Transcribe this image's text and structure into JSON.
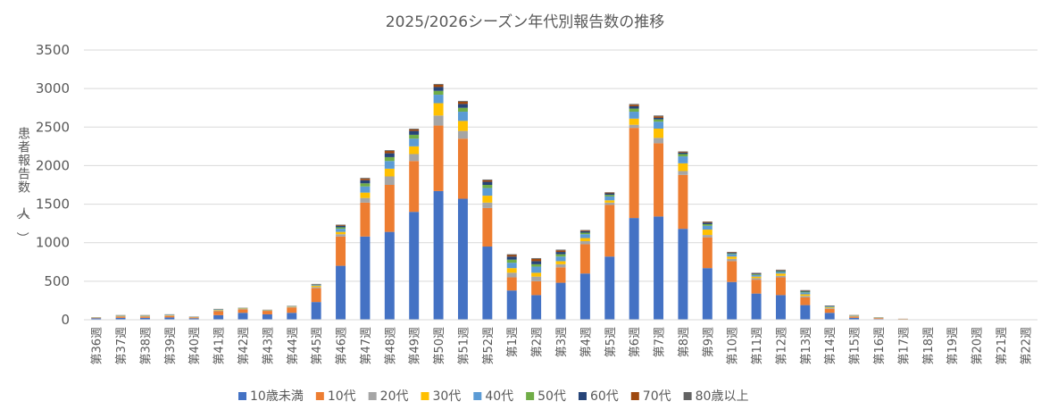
{
  "chart_data": {
    "type": "bar",
    "stacked": true,
    "title": "2025/2026シーズン年代別報告数の推移",
    "xlabel": "",
    "ylabel": "患者報告数（人）",
    "ylim": [
      0,
      3500
    ],
    "yticks": [
      "0",
      "500",
      "1000",
      "1500",
      "2000",
      "2500",
      "3000",
      "3500"
    ],
    "grid": true,
    "legend_position": "bottom",
    "categories": [
      "第36週",
      "第37週",
      "第38週",
      "第39週",
      "第40週",
      "第41週",
      "第42週",
      "第43週",
      "第44週",
      "第45週",
      "第46週",
      "第47週",
      "第48週",
      "第49週",
      "第50週",
      "第51週",
      "第52週",
      "第1週",
      "第2週",
      "第3週",
      "第4週",
      "第5週",
      "第6週",
      "第7週",
      "第8週",
      "第9週",
      "第10週",
      "第11週",
      "第12週",
      "第13週",
      "第14週",
      "第15週",
      "第16週",
      "第17週",
      "第18週",
      "第19週",
      "第20週",
      "第21週",
      "第22週"
    ],
    "series": [
      {
        "name": "10歳未満",
        "color": "#4472C4",
        "values": [
          20,
          25,
          25,
          30,
          20,
          60,
          90,
          70,
          90,
          230,
          700,
          1080,
          1140,
          1400,
          1670,
          1570,
          950,
          380,
          320,
          480,
          600,
          820,
          1320,
          1340,
          1180,
          670,
          490,
          340,
          320,
          190,
          90,
          25,
          10,
          5,
          0,
          0,
          0,
          0,
          0
        ]
      },
      {
        "name": "10代",
        "color": "#ED7D31",
        "values": [
          5,
          15,
          15,
          20,
          10,
          50,
          45,
          45,
          70,
          180,
          380,
          440,
          610,
          660,
          850,
          780,
          500,
          170,
          180,
          200,
          380,
          670,
          1170,
          950,
          700,
          400,
          270,
          180,
          230,
          100,
          50,
          15,
          10,
          5,
          0,
          0,
          0,
          0,
          0
        ]
      },
      {
        "name": "20代",
        "color": "#A5A5A5",
        "values": [
          2,
          5,
          5,
          5,
          3,
          8,
          5,
          3,
          5,
          15,
          30,
          60,
          110,
          90,
          130,
          100,
          70,
          60,
          60,
          40,
          40,
          30,
          40,
          70,
          50,
          30,
          30,
          20,
          20,
          20,
          10,
          5,
          3,
          0,
          0,
          0,
          0,
          0,
          0
        ]
      },
      {
        "name": "30代",
        "color": "#FFC000",
        "values": [
          2,
          5,
          5,
          5,
          3,
          7,
          5,
          3,
          5,
          15,
          30,
          70,
          100,
          100,
          160,
          130,
          90,
          60,
          50,
          40,
          40,
          30,
          80,
          120,
          100,
          70,
          30,
          20,
          30,
          20,
          10,
          5,
          2,
          0,
          0,
          0,
          0,
          0,
          0
        ]
      },
      {
        "name": "40代",
        "color": "#5B9BD5",
        "values": [
          2,
          5,
          5,
          5,
          3,
          7,
          5,
          3,
          5,
          10,
          40,
          80,
          100,
          100,
          110,
          120,
          100,
          70,
          80,
          60,
          50,
          50,
          90,
          90,
          90,
          50,
          30,
          20,
          20,
          25,
          10,
          5,
          2,
          0,
          0,
          0,
          0,
          0,
          0
        ]
      },
      {
        "name": "50代",
        "color": "#70AD47",
        "values": [
          1,
          2,
          2,
          2,
          1,
          3,
          2,
          2,
          2,
          5,
          20,
          40,
          50,
          50,
          50,
          50,
          40,
          40,
          30,
          30,
          20,
          20,
          40,
          30,
          30,
          20,
          10,
          10,
          10,
          10,
          5,
          2,
          2,
          1,
          1,
          1,
          0,
          0,
          0
        ]
      },
      {
        "name": "60代",
        "color": "#264478",
        "values": [
          1,
          2,
          2,
          2,
          1,
          3,
          2,
          2,
          2,
          5,
          20,
          40,
          50,
          50,
          50,
          50,
          40,
          40,
          40,
          30,
          20,
          20,
          30,
          20,
          20,
          20,
          10,
          10,
          10,
          10,
          5,
          2,
          1,
          1,
          0,
          0,
          0,
          0,
          0
        ]
      },
      {
        "name": "70代",
        "color": "#9E480E",
        "values": [
          1,
          1,
          1,
          1,
          1,
          2,
          1,
          1,
          1,
          3,
          10,
          20,
          30,
          20,
          30,
          30,
          20,
          20,
          30,
          20,
          10,
          10,
          20,
          20,
          10,
          10,
          5,
          5,
          5,
          5,
          3,
          2,
          1,
          1,
          0,
          0,
          0,
          0,
          0
        ]
      },
      {
        "name": "80歳以上",
        "color": "#636363",
        "values": [
          0,
          1,
          1,
          1,
          0,
          1,
          1,
          1,
          1,
          2,
          5,
          10,
          10,
          10,
          10,
          10,
          10,
          10,
          10,
          10,
          5,
          5,
          10,
          10,
          5,
          5,
          5,
          5,
          5,
          5,
          2,
          1,
          1,
          0,
          0,
          0,
          0,
          0,
          0
        ]
      }
    ]
  }
}
